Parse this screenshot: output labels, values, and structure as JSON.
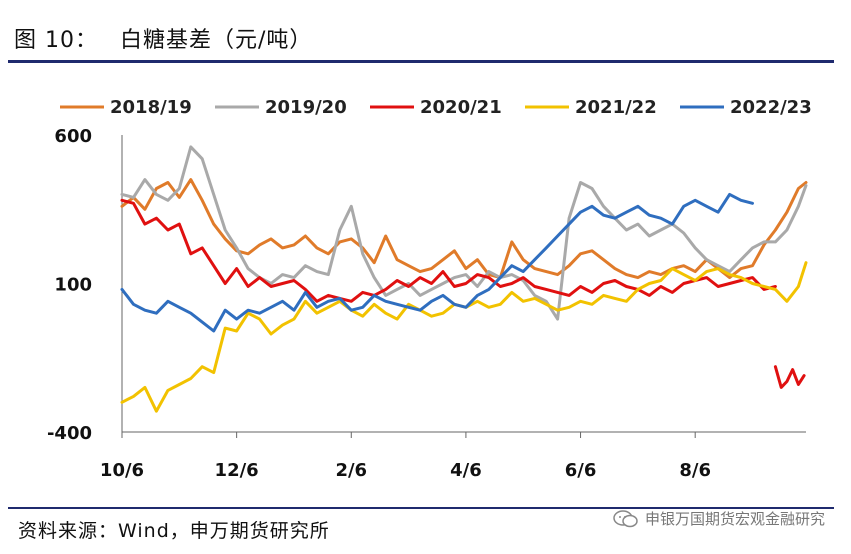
{
  "header": {
    "figure_no": "图 10：",
    "title": "白糖基差（元/吨）"
  },
  "footer": {
    "source": "资料来源：Wind，申万期货研究所",
    "watermark": "申银万国期货宏观金融研究"
  },
  "colors": {
    "rule": "#1f2a6e",
    "axis": "#666666",
    "neg_label": "#e01010"
  },
  "icons": {
    "watermark": "wechat-icon"
  },
  "chart_data": {
    "type": "line",
    "title": "白糖基差（元/吨）",
    "xlabel": "",
    "ylabel": "",
    "x_ticks": [
      "10/6",
      "12/6",
      "2/6",
      "4/6",
      "6/6",
      "8/6"
    ],
    "x_tick_pos": [
      0,
      60,
      120,
      180,
      240,
      300
    ],
    "xlim": [
      0,
      358
    ],
    "ylim": [
      -400,
      600
    ],
    "y_ticks": [
      -400,
      100,
      600
    ],
    "y_tick_colors": [
      "#e01010",
      "#111111",
      "#111111"
    ],
    "grid": false,
    "legend_position": "top",
    "series": [
      {
        "name": "2018/19",
        "color": "#e07b2a",
        "points": [
          [
            0,
            360
          ],
          [
            6,
            390
          ],
          [
            12,
            350
          ],
          [
            18,
            420
          ],
          [
            24,
            440
          ],
          [
            30,
            390
          ],
          [
            36,
            450
          ],
          [
            42,
            380
          ],
          [
            48,
            300
          ],
          [
            54,
            250
          ],
          [
            60,
            210
          ],
          [
            66,
            200
          ],
          [
            72,
            230
          ],
          [
            78,
            250
          ],
          [
            84,
            220
          ],
          [
            90,
            230
          ],
          [
            96,
            260
          ],
          [
            102,
            220
          ],
          [
            108,
            200
          ],
          [
            114,
            240
          ],
          [
            120,
            250
          ],
          [
            126,
            220
          ],
          [
            132,
            170
          ],
          [
            138,
            260
          ],
          [
            144,
            180
          ],
          [
            150,
            160
          ],
          [
            156,
            140
          ],
          [
            162,
            150
          ],
          [
            168,
            180
          ],
          [
            174,
            210
          ],
          [
            180,
            150
          ],
          [
            186,
            180
          ],
          [
            192,
            130
          ],
          [
            198,
            120
          ],
          [
            204,
            240
          ],
          [
            210,
            180
          ],
          [
            216,
            150
          ],
          [
            222,
            140
          ],
          [
            228,
            130
          ],
          [
            234,
            160
          ],
          [
            240,
            200
          ],
          [
            246,
            210
          ],
          [
            252,
            180
          ],
          [
            258,
            150
          ],
          [
            264,
            130
          ],
          [
            270,
            120
          ],
          [
            276,
            140
          ],
          [
            282,
            130
          ],
          [
            288,
            150
          ],
          [
            294,
            160
          ],
          [
            300,
            140
          ],
          [
            306,
            180
          ],
          [
            312,
            150
          ],
          [
            318,
            120
          ],
          [
            324,
            150
          ],
          [
            330,
            160
          ],
          [
            336,
            230
          ],
          [
            342,
            280
          ],
          [
            348,
            340
          ],
          [
            354,
            420
          ],
          [
            358,
            440
          ]
        ]
      },
      {
        "name": "2019/20",
        "color": "#a9a9a9",
        "points": [
          [
            0,
            400
          ],
          [
            6,
            390
          ],
          [
            12,
            450
          ],
          [
            18,
            400
          ],
          [
            24,
            380
          ],
          [
            30,
            420
          ],
          [
            36,
            560
          ],
          [
            42,
            520
          ],
          [
            48,
            400
          ],
          [
            54,
            280
          ],
          [
            60,
            220
          ],
          [
            66,
            150
          ],
          [
            72,
            120
          ],
          [
            78,
            100
          ],
          [
            84,
            130
          ],
          [
            90,
            120
          ],
          [
            96,
            160
          ],
          [
            102,
            140
          ],
          [
            108,
            130
          ],
          [
            114,
            280
          ],
          [
            120,
            360
          ],
          [
            126,
            200
          ],
          [
            132,
            120
          ],
          [
            138,
            60
          ],
          [
            144,
            80
          ],
          [
            150,
            100
          ],
          [
            156,
            60
          ],
          [
            162,
            80
          ],
          [
            168,
            100
          ],
          [
            174,
            120
          ],
          [
            180,
            130
          ],
          [
            186,
            90
          ],
          [
            192,
            140
          ],
          [
            198,
            120
          ],
          [
            204,
            130
          ],
          [
            210,
            110
          ],
          [
            216,
            60
          ],
          [
            222,
            40
          ],
          [
            228,
            -20
          ],
          [
            234,
            320
          ],
          [
            240,
            440
          ],
          [
            246,
            420
          ],
          [
            252,
            360
          ],
          [
            258,
            320
          ],
          [
            264,
            280
          ],
          [
            270,
            300
          ],
          [
            276,
            260
          ],
          [
            282,
            280
          ],
          [
            288,
            300
          ],
          [
            294,
            270
          ],
          [
            300,
            220
          ],
          [
            306,
            180
          ],
          [
            312,
            160
          ],
          [
            318,
            140
          ],
          [
            324,
            180
          ],
          [
            330,
            220
          ],
          [
            336,
            240
          ],
          [
            342,
            240
          ],
          [
            348,
            280
          ],
          [
            354,
            360
          ],
          [
            358,
            430
          ]
        ]
      },
      {
        "name": "2020/21",
        "color": "#e01010",
        "points": [
          [
            0,
            380
          ],
          [
            6,
            370
          ],
          [
            12,
            300
          ],
          [
            18,
            320
          ],
          [
            24,
            280
          ],
          [
            30,
            300
          ],
          [
            36,
            200
          ],
          [
            42,
            220
          ],
          [
            48,
            160
          ],
          [
            54,
            100
          ],
          [
            60,
            150
          ],
          [
            66,
            90
          ],
          [
            72,
            120
          ],
          [
            78,
            90
          ],
          [
            84,
            100
          ],
          [
            90,
            110
          ],
          [
            96,
            80
          ],
          [
            102,
            40
          ],
          [
            108,
            60
          ],
          [
            114,
            50
          ],
          [
            120,
            40
          ],
          [
            126,
            70
          ],
          [
            132,
            60
          ],
          [
            138,
            80
          ],
          [
            144,
            110
          ],
          [
            150,
            90
          ],
          [
            156,
            120
          ],
          [
            162,
            100
          ],
          [
            168,
            140
          ],
          [
            174,
            90
          ],
          [
            180,
            100
          ],
          [
            186,
            130
          ],
          [
            192,
            120
          ],
          [
            198,
            90
          ],
          [
            204,
            100
          ],
          [
            210,
            120
          ],
          [
            216,
            90
          ],
          [
            222,
            80
          ],
          [
            228,
            70
          ],
          [
            234,
            60
          ],
          [
            240,
            90
          ],
          [
            246,
            70
          ],
          [
            252,
            100
          ],
          [
            258,
            110
          ],
          [
            264,
            90
          ],
          [
            270,
            80
          ],
          [
            276,
            60
          ],
          [
            282,
            90
          ],
          [
            288,
            70
          ],
          [
            294,
            100
          ],
          [
            300,
            110
          ],
          [
            306,
            120
          ],
          [
            312,
            90
          ],
          [
            318,
            100
          ],
          [
            324,
            110
          ],
          [
            330,
            120
          ],
          [
            336,
            80
          ],
          [
            342,
            90
          ]
        ],
        "points_tail": [
          [
            342,
            -180
          ],
          [
            345,
            -250
          ],
          [
            348,
            -230
          ],
          [
            351,
            -190
          ],
          [
            354,
            -240
          ],
          [
            357,
            -210
          ]
        ]
      },
      {
        "name": "2021/22",
        "color": "#f2c200",
        "points": [
          [
            0,
            -300
          ],
          [
            6,
            -280
          ],
          [
            12,
            -250
          ],
          [
            18,
            -330
          ],
          [
            24,
            -260
          ],
          [
            30,
            -240
          ],
          [
            36,
            -220
          ],
          [
            42,
            -180
          ],
          [
            48,
            -200
          ],
          [
            54,
            -50
          ],
          [
            60,
            -60
          ],
          [
            66,
            0
          ],
          [
            72,
            -20
          ],
          [
            78,
            -70
          ],
          [
            84,
            -40
          ],
          [
            90,
            -20
          ],
          [
            96,
            40
          ],
          [
            102,
            0
          ],
          [
            108,
            20
          ],
          [
            114,
            40
          ],
          [
            120,
            10
          ],
          [
            126,
            -10
          ],
          [
            132,
            30
          ],
          [
            138,
            0
          ],
          [
            144,
            -20
          ],
          [
            150,
            30
          ],
          [
            156,
            10
          ],
          [
            162,
            -10
          ],
          [
            168,
            0
          ],
          [
            174,
            30
          ],
          [
            180,
            20
          ],
          [
            186,
            40
          ],
          [
            192,
            20
          ],
          [
            198,
            30
          ],
          [
            204,
            70
          ],
          [
            210,
            40
          ],
          [
            216,
            50
          ],
          [
            222,
            30
          ],
          [
            228,
            10
          ],
          [
            234,
            20
          ],
          [
            240,
            40
          ],
          [
            246,
            30
          ],
          [
            252,
            60
          ],
          [
            258,
            50
          ],
          [
            264,
            40
          ],
          [
            270,
            80
          ],
          [
            276,
            100
          ],
          [
            282,
            110
          ],
          [
            288,
            150
          ],
          [
            294,
            130
          ],
          [
            300,
            110
          ],
          [
            306,
            140
          ],
          [
            312,
            150
          ],
          [
            318,
            130
          ],
          [
            324,
            120
          ],
          [
            330,
            100
          ],
          [
            336,
            90
          ],
          [
            342,
            80
          ],
          [
            348,
            40
          ],
          [
            354,
            90
          ],
          [
            358,
            170
          ]
        ]
      },
      {
        "name": "2022/23",
        "color": "#2f6ebf",
        "points": [
          [
            0,
            80
          ],
          [
            6,
            30
          ],
          [
            12,
            10
          ],
          [
            18,
            0
          ],
          [
            24,
            40
          ],
          [
            30,
            20
          ],
          [
            36,
            0
          ],
          [
            42,
            -30
          ],
          [
            48,
            -60
          ],
          [
            54,
            10
          ],
          [
            60,
            -20
          ],
          [
            66,
            10
          ],
          [
            72,
            0
          ],
          [
            78,
            20
          ],
          [
            84,
            40
          ],
          [
            90,
            10
          ],
          [
            96,
            70
          ],
          [
            102,
            20
          ],
          [
            108,
            40
          ],
          [
            114,
            50
          ],
          [
            120,
            10
          ],
          [
            126,
            20
          ],
          [
            132,
            60
          ],
          [
            138,
            40
          ],
          [
            144,
            30
          ],
          [
            150,
            20
          ],
          [
            156,
            10
          ],
          [
            162,
            40
          ],
          [
            168,
            60
          ],
          [
            174,
            30
          ],
          [
            180,
            20
          ],
          [
            186,
            60
          ],
          [
            192,
            80
          ],
          [
            198,
            120
          ],
          [
            204,
            160
          ],
          [
            210,
            140
          ],
          [
            216,
            180
          ],
          [
            222,
            220
          ],
          [
            228,
            260
          ],
          [
            234,
            300
          ],
          [
            240,
            340
          ],
          [
            246,
            360
          ],
          [
            252,
            330
          ],
          [
            258,
            320
          ],
          [
            264,
            340
          ],
          [
            270,
            360
          ],
          [
            276,
            330
          ],
          [
            282,
            320
          ],
          [
            288,
            300
          ],
          [
            294,
            360
          ],
          [
            300,
            380
          ],
          [
            306,
            360
          ],
          [
            312,
            340
          ],
          [
            318,
            400
          ],
          [
            324,
            380
          ],
          [
            330,
            370
          ]
        ]
      }
    ]
  }
}
